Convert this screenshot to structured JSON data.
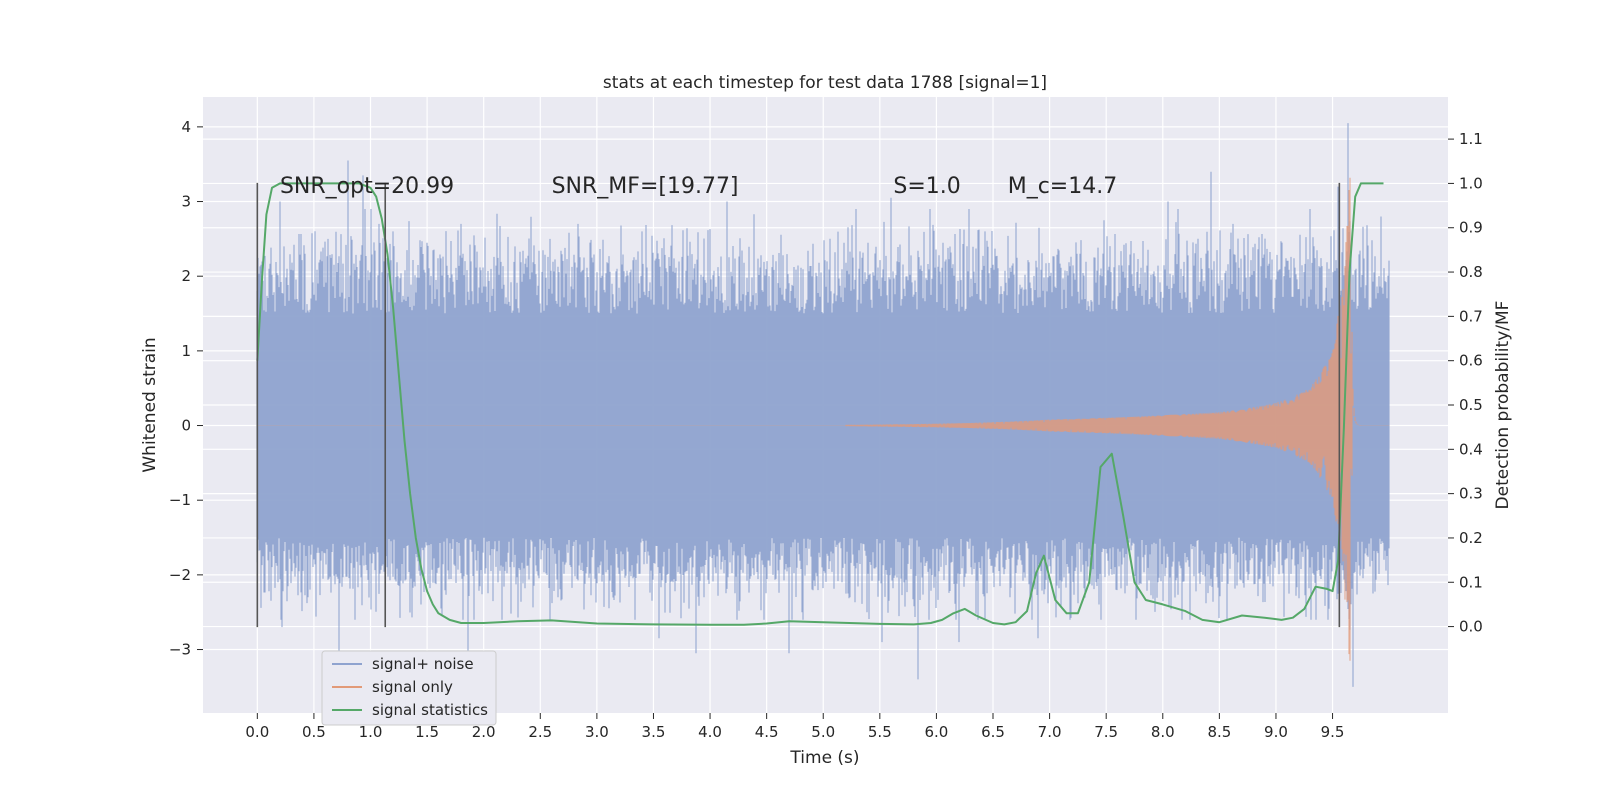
{
  "chart_data": {
    "type": "line",
    "title": "stats at each timestep for test data 1788 [signal=1]",
    "xlabel": "Time (s)",
    "ylabel": "Whitened strain",
    "y2label": "Detection probability/MF",
    "xlim": [
      -0.48,
      10.52
    ],
    "ylim": [
      -3.85,
      4.4
    ],
    "y2lim": [
      -0.195,
      1.195
    ],
    "xticks": [
      0.0,
      0.5,
      1.0,
      1.5,
      2.0,
      2.5,
      3.0,
      3.5,
      4.0,
      4.5,
      5.0,
      5.5,
      6.0,
      6.5,
      7.0,
      7.5,
      8.0,
      8.5,
      9.0,
      9.5
    ],
    "xtick_labels": [
      "0.0",
      "0.5",
      "1.0",
      "1.5",
      "2.0",
      "2.5",
      "3.0",
      "3.5",
      "4.0",
      "4.5",
      "5.0",
      "5.5",
      "6.0",
      "6.5",
      "7.0",
      "7.5",
      "8.0",
      "8.5",
      "9.0",
      "9.5"
    ],
    "yticks": [
      -3,
      -2,
      -1,
      0,
      1,
      2,
      3,
      4
    ],
    "ytick_labels": [
      "−3",
      "−2",
      "−1",
      "0",
      "1",
      "2",
      "3",
      "4"
    ],
    "y2ticks": [
      0.0,
      0.1,
      0.2,
      0.3,
      0.4,
      0.5,
      0.6,
      0.7,
      0.8,
      0.9,
      1.0,
      1.1
    ],
    "y2tick_labels": [
      "0.0",
      "0.1",
      "0.2",
      "0.3",
      "0.4",
      "0.5",
      "0.6",
      "0.7",
      "0.8",
      "0.9",
      "1.0",
      "1.1"
    ],
    "grid": true,
    "legend_position": "lower-left",
    "colors": {
      "noise": "#8fa3cf",
      "signal": "#e29a78",
      "stats": "#55a868",
      "vline": "#555555",
      "background": "#eaeaf2",
      "grid": "#ffffff"
    },
    "series": [
      {
        "name": "signal+ noise",
        "axis": "left",
        "duration_s": 10.0,
        "x_start": 0.0,
        "envelope": {
          "core_halfwidth": 1.5,
          "typical_peak": 2.0
        },
        "notable_peaks": [
          {
            "x": 0.1,
            "y": 2.1
          },
          {
            "x": 0.2,
            "y": 3.0
          },
          {
            "x": 0.42,
            "y": 2.3
          },
          {
            "x": 0.62,
            "y": 2.5
          },
          {
            "x": 0.8,
            "y": 3.55
          },
          {
            "x": 0.93,
            "y": 3.35
          },
          {
            "x": 1.0,
            "y": 2.9
          },
          {
            "x": 1.2,
            "y": 2.6
          },
          {
            "x": 1.8,
            "y": 2.7
          },
          {
            "x": 2.83,
            "y": 2.7
          },
          {
            "x": 3.4,
            "y": 2.6
          },
          {
            "x": 4.15,
            "y": 3.0
          },
          {
            "x": 5.6,
            "y": 3.05
          },
          {
            "x": 6.43,
            "y": 2.6
          },
          {
            "x": 7.48,
            "y": 2.75
          },
          {
            "x": 8.05,
            "y": 3.0
          },
          {
            "x": 8.43,
            "y": 3.4
          },
          {
            "x": 9.3,
            "y": 2.9
          },
          {
            "x": 9.55,
            "y": 3.2
          },
          {
            "x": 9.64,
            "y": 4.05
          },
          {
            "x": 9.93,
            "y": 2.8
          },
          {
            "x": 0.22,
            "y": -2.7
          },
          {
            "x": 0.72,
            "y": -3.1
          },
          {
            "x": 1.62,
            "y": -2.45
          },
          {
            "x": 1.86,
            "y": -3.4
          },
          {
            "x": 3.55,
            "y": -2.85
          },
          {
            "x": 3.88,
            "y": -3.05
          },
          {
            "x": 4.7,
            "y": -3.05
          },
          {
            "x": 5.52,
            "y": -2.9
          },
          {
            "x": 5.84,
            "y": -3.4
          },
          {
            "x": 6.2,
            "y": -2.9
          },
          {
            "x": 6.9,
            "y": -2.85
          },
          {
            "x": 9.68,
            "y": -3.5
          }
        ]
      },
      {
        "name": "signal only",
        "axis": "left",
        "chirp_start_s": 5.2,
        "merger_s": 9.66,
        "ringdown_end_s": 9.72,
        "amplitude": [
          {
            "x": 5.2,
            "y": 0.01
          },
          {
            "x": 7.0,
            "y": 0.08
          },
          {
            "x": 8.5,
            "y": 0.18
          },
          {
            "x": 9.0,
            "y": 0.3
          },
          {
            "x": 9.3,
            "y": 0.5
          },
          {
            "x": 9.5,
            "y": 1.0
          },
          {
            "x": 9.6,
            "y": 2.0
          },
          {
            "x": 9.66,
            "y": 3.4
          }
        ]
      },
      {
        "name": "signal statistics",
        "axis": "right",
        "x": [
          0.0,
          0.04,
          0.08,
          0.13,
          0.2,
          0.3,
          0.5,
          0.7,
          0.9,
          1.0,
          1.05,
          1.1,
          1.15,
          1.2,
          1.25,
          1.3,
          1.35,
          1.4,
          1.45,
          1.5,
          1.55,
          1.6,
          1.7,
          1.8,
          2.0,
          2.3,
          2.6,
          3.0,
          3.5,
          4.0,
          4.3,
          4.5,
          4.7,
          5.0,
          5.5,
          5.8,
          5.95,
          6.05,
          6.15,
          6.25,
          6.35,
          6.5,
          6.6,
          6.7,
          6.8,
          6.88,
          6.95,
          7.05,
          7.15,
          7.25,
          7.35,
          7.45,
          7.55,
          7.65,
          7.75,
          7.85,
          8.0,
          8.2,
          8.35,
          8.5,
          8.7,
          8.9,
          9.05,
          9.15,
          9.25,
          9.35,
          9.45,
          9.5,
          9.55,
          9.6,
          9.65,
          9.7,
          9.75,
          9.8,
          9.85,
          9.95
        ],
        "y": [
          0.6,
          0.78,
          0.93,
          0.99,
          1.0,
          1.0,
          1.0,
          1.0,
          1.0,
          0.99,
          0.97,
          0.92,
          0.84,
          0.72,
          0.57,
          0.42,
          0.3,
          0.2,
          0.13,
          0.08,
          0.05,
          0.03,
          0.015,
          0.008,
          0.008,
          0.012,
          0.014,
          0.007,
          0.005,
          0.004,
          0.004,
          0.007,
          0.012,
          0.01,
          0.006,
          0.005,
          0.008,
          0.015,
          0.03,
          0.04,
          0.025,
          0.008,
          0.005,
          0.01,
          0.035,
          0.12,
          0.16,
          0.06,
          0.03,
          0.03,
          0.1,
          0.36,
          0.39,
          0.25,
          0.1,
          0.06,
          0.05,
          0.035,
          0.015,
          0.01,
          0.025,
          0.02,
          0.015,
          0.02,
          0.04,
          0.09,
          0.085,
          0.08,
          0.15,
          0.45,
          0.8,
          0.97,
          1.0,
          1.0,
          1.0,
          1.0
        ]
      }
    ],
    "vlines": [
      {
        "x": 0.0,
        "y_range": [
          -2.7,
          3.25
        ]
      },
      {
        "x": 1.13,
        "y_range": [
          -2.7,
          3.25
        ]
      },
      {
        "x": 9.56,
        "y_range": [
          -2.7,
          3.25
        ]
      }
    ],
    "annotations": [
      {
        "text": "SNR_opt=20.99",
        "x": 0.2,
        "y": 3.22
      },
      {
        "text": "SNR_MF=[19.77]",
        "x": 2.6,
        "y": 3.22
      },
      {
        "text": "S=1.0",
        "x": 5.62,
        "y": 3.22
      },
      {
        "text": "M_c=14.7",
        "x": 6.63,
        "y": 3.22
      }
    ]
  }
}
